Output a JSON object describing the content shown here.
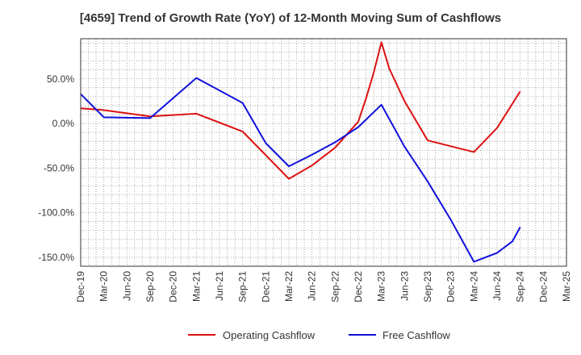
{
  "chart_data": {
    "type": "line",
    "title": "[4659]  Trend of Growth Rate (YoY) of 12-Month Moving Sum of Cashflows",
    "xlabel": "",
    "ylabel": "",
    "x": [
      "Dec-19",
      "Mar-20",
      "Jun-20",
      "Sep-20",
      "Dec-20",
      "Mar-21",
      "Jun-21",
      "Sep-21",
      "Dec-21",
      "Mar-22",
      "Jun-22",
      "Sep-22",
      "Dec-22",
      "Mar-23",
      "Jun-23",
      "Sep-23",
      "Dec-23",
      "Mar-24",
      "Jun-24",
      "Sep-24",
      "Dec-24",
      "Mar-25"
    ],
    "ylim": [
      -160,
      95
    ],
    "yticks": [
      -150,
      -100,
      -50,
      0,
      50
    ],
    "ytick_labels": [
      "-150.0%",
      "-100.0%",
      "-50.0%",
      "0.0%",
      "50.0%"
    ],
    "grid": true,
    "legend": "bottom",
    "series": [
      {
        "name": "Operating Cashflow",
        "color": "#dd1111",
        "points": [
          [
            "Dec-19",
            17
          ],
          [
            "Mar-20",
            15
          ],
          [
            "Sep-20",
            8
          ],
          [
            "Mar-21",
            11
          ],
          [
            "Sep-21",
            -9
          ],
          [
            "Mar-22",
            -62
          ],
          [
            "Jun-22",
            -47
          ],
          [
            "Sep-22",
            -27
          ],
          [
            "Dec-22",
            2
          ],
          [
            "Jan-23",
            28
          ],
          [
            "Feb-23",
            57
          ],
          [
            "Mar-23",
            91
          ],
          [
            "Apr-23",
            62
          ],
          [
            "Jun-23",
            25
          ],
          [
            "Sep-23",
            -19
          ],
          [
            "Mar-24",
            -32
          ],
          [
            "Jun-24",
            -5
          ],
          [
            "Sep-24",
            36
          ]
        ]
      },
      {
        "name": "Free Cashflow",
        "color": "#1111dd",
        "points": [
          [
            "Dec-19",
            33
          ],
          [
            "Mar-20",
            7
          ],
          [
            "Sep-20",
            6
          ],
          [
            "Mar-21",
            51
          ],
          [
            "Sep-21",
            23
          ],
          [
            "Dec-21",
            -22
          ],
          [
            "Mar-22",
            -48
          ],
          [
            "Jun-22",
            -35
          ],
          [
            "Sep-22",
            -21
          ],
          [
            "Dec-22",
            -4
          ],
          [
            "Mar-23",
            21
          ],
          [
            "Jun-23",
            -26
          ],
          [
            "Sep-23",
            -65
          ],
          [
            "Dec-23",
            -108
          ],
          [
            "Mar-24",
            -155
          ],
          [
            "Jun-24",
            -145
          ],
          [
            "Aug-24",
            -132
          ],
          [
            "Sep-24",
            -116
          ]
        ]
      }
    ]
  }
}
